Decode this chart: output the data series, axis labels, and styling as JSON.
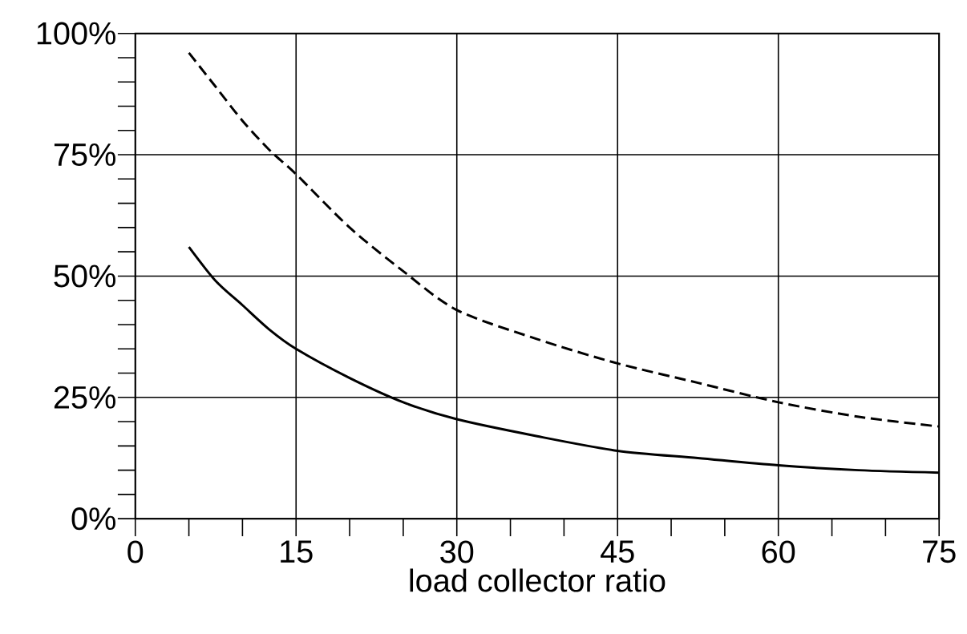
{
  "chart_data": {
    "type": "line",
    "xlabel": "load collector ratio",
    "x": [
      5,
      7.5,
      10,
      12.5,
      15,
      20,
      25,
      30,
      37.5,
      45,
      52.5,
      60,
      67.5,
      75
    ],
    "series": [
      {
        "color": "#000000",
        "line_style": "dashed",
        "values": [
          96,
          89,
          82,
          76,
          71,
          60,
          51,
          43,
          37,
          32,
          28,
          24,
          21,
          19
        ]
      },
      {
        "color": "#000000",
        "line_style": "solid",
        "values": [
          56,
          49,
          44,
          39,
          35,
          29,
          24,
          20.5,
          17,
          14,
          12.5,
          11,
          10,
          9.5
        ]
      }
    ],
    "xlim": [
      0,
      75
    ],
    "ylim": [
      0,
      100
    ],
    "xticks": [
      0,
      15,
      30,
      45,
      60,
      75
    ],
    "yticks": [
      {
        "value": 0,
        "label": "0%"
      },
      {
        "value": 25,
        "label": "25%"
      },
      {
        "value": 50,
        "label": "50%"
      },
      {
        "value": 75,
        "label": "75%"
      },
      {
        "value": 100,
        "label": "100%"
      }
    ],
    "grid": true,
    "marker": "none"
  }
}
